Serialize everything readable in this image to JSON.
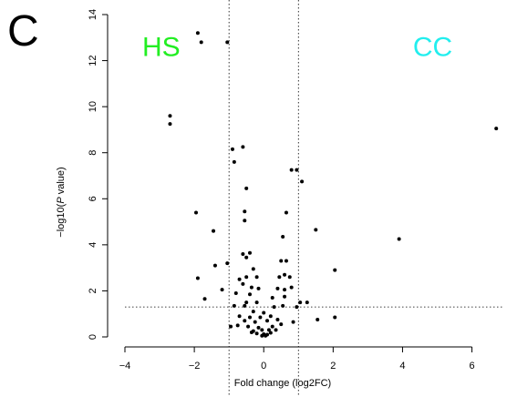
{
  "panel_letter": "C",
  "colors": {
    "hs": "#22ee22",
    "cc": "#22eeee",
    "points": "#000000",
    "axis": "#000000"
  },
  "chart_data": {
    "type": "scatter",
    "title": "",
    "xlabel": "Fold change (log2FC)",
    "ylabel_prefix": "−log10(",
    "ylabel_italic": "P",
    "ylabel_suffix": " value)",
    "xlim": [
      -4,
      6.8
    ],
    "ylim": [
      0,
      14
    ],
    "x_ticks": [
      -4,
      -2,
      0,
      2,
      4,
      6
    ],
    "x_tick_labels": [
      "−4",
      "−2",
      "0",
      "2",
      "4",
      "6"
    ],
    "y_ticks": [
      0,
      2,
      4,
      6,
      8,
      10,
      12,
      14
    ],
    "y_tick_labels": [
      "0",
      "2",
      "4",
      "6",
      "8",
      "10",
      "12",
      "14"
    ],
    "vertical_thresholds": [
      -1,
      1
    ],
    "horizontal_threshold": 1.3,
    "grid": false,
    "annotations": [
      {
        "text": "HS",
        "x": -3.5,
        "y": 12.2,
        "color_key": "hs"
      },
      {
        "text": "CC",
        "x": 4.3,
        "y": 12.2,
        "color_key": "cc"
      }
    ],
    "points": [
      [
        -1.9,
        13.2
      ],
      [
        -1.8,
        12.8
      ],
      [
        -1.05,
        12.8
      ],
      [
        -2.7,
        9.6
      ],
      [
        -2.7,
        9.25
      ],
      [
        6.7,
        9.05
      ],
      [
        -0.9,
        8.15
      ],
      [
        -0.6,
        8.25
      ],
      [
        -0.85,
        7.6
      ],
      [
        0.8,
        7.25
      ],
      [
        0.95,
        7.25
      ],
      [
        1.1,
        6.75
      ],
      [
        -0.5,
        6.45
      ],
      [
        -0.55,
        5.45
      ],
      [
        0.65,
        5.4
      ],
      [
        -0.55,
        5.05
      ],
      [
        -1.95,
        5.4
      ],
      [
        -1.45,
        4.6
      ],
      [
        1.5,
        4.65
      ],
      [
        3.9,
        4.25
      ],
      [
        0.55,
        4.35
      ],
      [
        -0.4,
        3.65
      ],
      [
        -0.6,
        3.6
      ],
      [
        -0.5,
        3.45
      ],
      [
        -1.05,
        3.2
      ],
      [
        -1.4,
        3.1
      ],
      [
        0.5,
        3.3
      ],
      [
        0.65,
        3.3
      ],
      [
        -0.3,
        2.95
      ],
      [
        0.45,
        2.6
      ],
      [
        0.6,
        2.7
      ],
      [
        0.75,
        2.6
      ],
      [
        2.05,
        2.9
      ],
      [
        -1.9,
        2.55
      ],
      [
        -1.2,
        2.05
      ],
      [
        -1.7,
        1.65
      ],
      [
        -0.5,
        2.6
      ],
      [
        -0.7,
        2.5
      ],
      [
        -0.2,
        2.6
      ],
      [
        -0.6,
        2.3
      ],
      [
        -0.35,
        2.15
      ],
      [
        -0.15,
        2.1
      ],
      [
        0.4,
        2.1
      ],
      [
        0.6,
        2.05
      ],
      [
        0.8,
        2.15
      ],
      [
        -0.8,
        1.9
      ],
      [
        -0.4,
        1.85
      ],
      [
        0.25,
        1.7
      ],
      [
        0.6,
        1.75
      ],
      [
        -0.5,
        1.5
      ],
      [
        -0.2,
        1.5
      ],
      [
        1.05,
        1.5
      ],
      [
        1.25,
        1.5
      ],
      [
        -0.85,
        1.35
      ],
      [
        -0.55,
        1.35
      ],
      [
        0.3,
        1.3
      ],
      [
        0.55,
        1.35
      ],
      [
        0.95,
        1.3
      ],
      [
        -0.3,
        1.1
      ],
      [
        0.0,
        1.05
      ],
      [
        -0.7,
        0.9
      ],
      [
        -0.4,
        0.85
      ],
      [
        -0.1,
        0.85
      ],
      [
        0.2,
        0.9
      ],
      [
        -0.55,
        0.7
      ],
      [
        -0.25,
        0.65
      ],
      [
        0.1,
        0.7
      ],
      [
        0.4,
        0.75
      ],
      [
        -0.95,
        0.45
      ],
      [
        -0.75,
        0.5
      ],
      [
        -0.45,
        0.45
      ],
      [
        -0.15,
        0.4
      ],
      [
        0.25,
        0.45
      ],
      [
        0.5,
        0.55
      ],
      [
        0.85,
        0.65
      ],
      [
        1.55,
        0.75
      ],
      [
        2.05,
        0.85
      ],
      [
        -0.3,
        0.25
      ],
      [
        -0.05,
        0.3
      ],
      [
        0.15,
        0.3
      ],
      [
        0.35,
        0.3
      ],
      [
        -0.2,
        0.15
      ],
      [
        0.0,
        0.12
      ],
      [
        0.1,
        0.1
      ],
      [
        -0.05,
        0.05
      ],
      [
        0.05,
        0.05
      ],
      [
        0.2,
        0.18
      ],
      [
        -0.35,
        0.2
      ]
    ]
  }
}
